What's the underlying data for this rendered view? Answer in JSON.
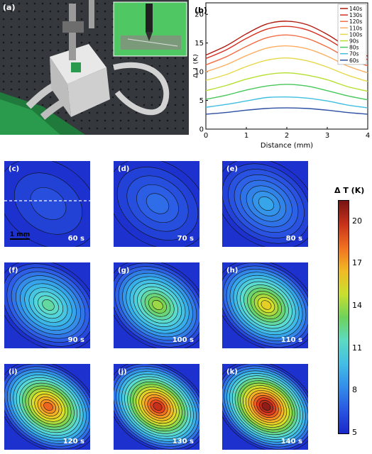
{
  "panel_labels": {
    "a": "(a)",
    "b": "(b)"
  },
  "panel_a": {
    "description_icon": "photo-experimental-setup"
  },
  "chart_data": {
    "type": "line",
    "title": "",
    "xlabel": "Distance (mm)",
    "ylabel": "Δ T (K)",
    "xlim": [
      0,
      4
    ],
    "ylim": [
      0,
      22
    ],
    "xticks": [
      "0",
      "1",
      "2",
      "3",
      "4"
    ],
    "yticks": [
      "0",
      "5",
      "10",
      "15",
      "20"
    ],
    "legend_position": "top-right",
    "x": [
      0,
      0.5,
      1,
      1.5,
      2,
      2.5,
      3,
      3.5,
      4
    ],
    "series": [
      {
        "name": "140s",
        "color": "#b2180e",
        "values": [
          12.9,
          14.5,
          16.6,
          18.3,
          18.8,
          18.2,
          16.5,
          14.3,
          12.7
        ]
      },
      {
        "name": "130s",
        "color": "#d7301f",
        "values": [
          12.3,
          13.8,
          15.8,
          17.4,
          17.9,
          17.3,
          15.7,
          13.6,
          12.1
        ]
      },
      {
        "name": "120s",
        "color": "#f46d43",
        "values": [
          11.2,
          12.6,
          14.4,
          15.9,
          16.4,
          15.8,
          14.3,
          12.4,
          11.0
        ]
      },
      {
        "name": "110s",
        "color": "#fdae61",
        "values": [
          10.0,
          11.2,
          12.8,
          14.1,
          14.5,
          14.0,
          12.7,
          11.0,
          9.8
        ]
      },
      {
        "name": "100s",
        "color": "#e6d84a",
        "values": [
          8.5,
          9.5,
          10.9,
          12.0,
          12.4,
          11.9,
          10.8,
          9.4,
          8.3
        ]
      },
      {
        "name": "90s",
        "color": "#b5e02e",
        "values": [
          6.7,
          7.6,
          8.7,
          9.5,
          9.8,
          9.4,
          8.6,
          7.4,
          6.6
        ]
      },
      {
        "name": "80s",
        "color": "#47c75a",
        "values": [
          5.2,
          5.9,
          6.8,
          7.5,
          7.8,
          7.5,
          6.7,
          5.8,
          5.1
        ]
      },
      {
        "name": "70s",
        "color": "#40bfe0",
        "values": [
          3.8,
          4.3,
          4.9,
          5.5,
          5.6,
          5.4,
          4.9,
          4.2,
          3.7
        ]
      },
      {
        "name": "60s",
        "color": "#2c4ea3",
        "values": [
          2.6,
          2.9,
          3.3,
          3.6,
          3.7,
          3.6,
          3.3,
          2.9,
          2.6
        ]
      }
    ]
  },
  "maps": [
    {
      "label": "(c)",
      "time": "60 s",
      "peak": 0.09,
      "levels": 3,
      "has_line": true,
      "has_scale": true
    },
    {
      "label": "(d)",
      "time": "70 s",
      "peak": 0.15,
      "levels": 5,
      "has_line": false,
      "has_scale": false
    },
    {
      "label": "(e)",
      "time": "80 s",
      "peak": 0.25,
      "levels": 8,
      "has_line": false,
      "has_scale": false
    },
    {
      "label": "(f)",
      "time": "90 s",
      "peak": 0.45,
      "levels": 11,
      "has_line": false,
      "has_scale": false
    },
    {
      "label": "(g)",
      "time": "100 s",
      "peak": 0.57,
      "levels": 13,
      "has_line": false,
      "has_scale": false
    },
    {
      "label": "(h)",
      "time": "110 s",
      "peak": 0.68,
      "levels": 14,
      "has_line": false,
      "has_scale": false
    },
    {
      "label": "(i)",
      "time": "120 s",
      "peak": 0.84,
      "levels": 16,
      "has_line": false,
      "has_scale": false
    },
    {
      "label": "(j)",
      "time": "130 s",
      "peak": 0.93,
      "levels": 17,
      "has_line": false,
      "has_scale": false
    },
    {
      "label": "(k)",
      "time": "140 s",
      "peak": 1.0,
      "levels": 18,
      "has_line": false,
      "has_scale": false
    }
  ],
  "scale_bar_label": "1 mm",
  "colorbar": {
    "title": "Δ T (K)",
    "ticks": [
      "20",
      "17",
      "14",
      "11",
      "8",
      "5"
    ],
    "tick_values": [
      20,
      17,
      14,
      11,
      8,
      5
    ],
    "range": [
      5,
      21.5
    ]
  }
}
